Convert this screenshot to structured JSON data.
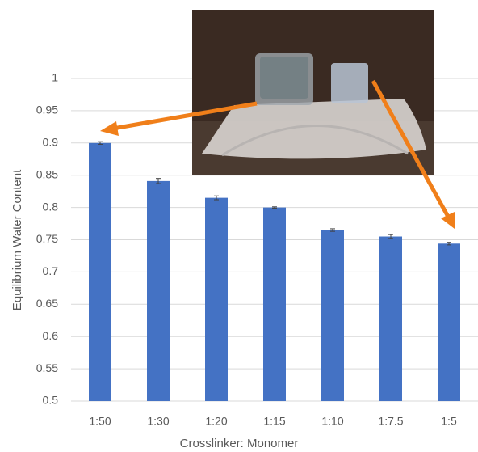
{
  "chart_data": {
    "type": "bar",
    "categories": [
      "1:50",
      "1:30",
      "1:20",
      "1:15",
      "1:10",
      "1:7.5",
      "1:5"
    ],
    "values": [
      0.9,
      0.841,
      0.815,
      0.8,
      0.765,
      0.755,
      0.744
    ],
    "errors": [
      0.002,
      0.004,
      0.003,
      0.001,
      0.002,
      0.003,
      0.002
    ],
    "color": "#4472c4",
    "x_label": "Crosslinker: Monomer",
    "y_label": "Equilibrium Water Content",
    "ylim": [
      0.5,
      1
    ],
    "yticks": [
      0.5,
      0.55,
      0.6,
      0.65,
      0.7,
      0.75,
      0.8,
      0.85,
      0.9,
      0.95,
      1
    ],
    "grid": true
  }
}
